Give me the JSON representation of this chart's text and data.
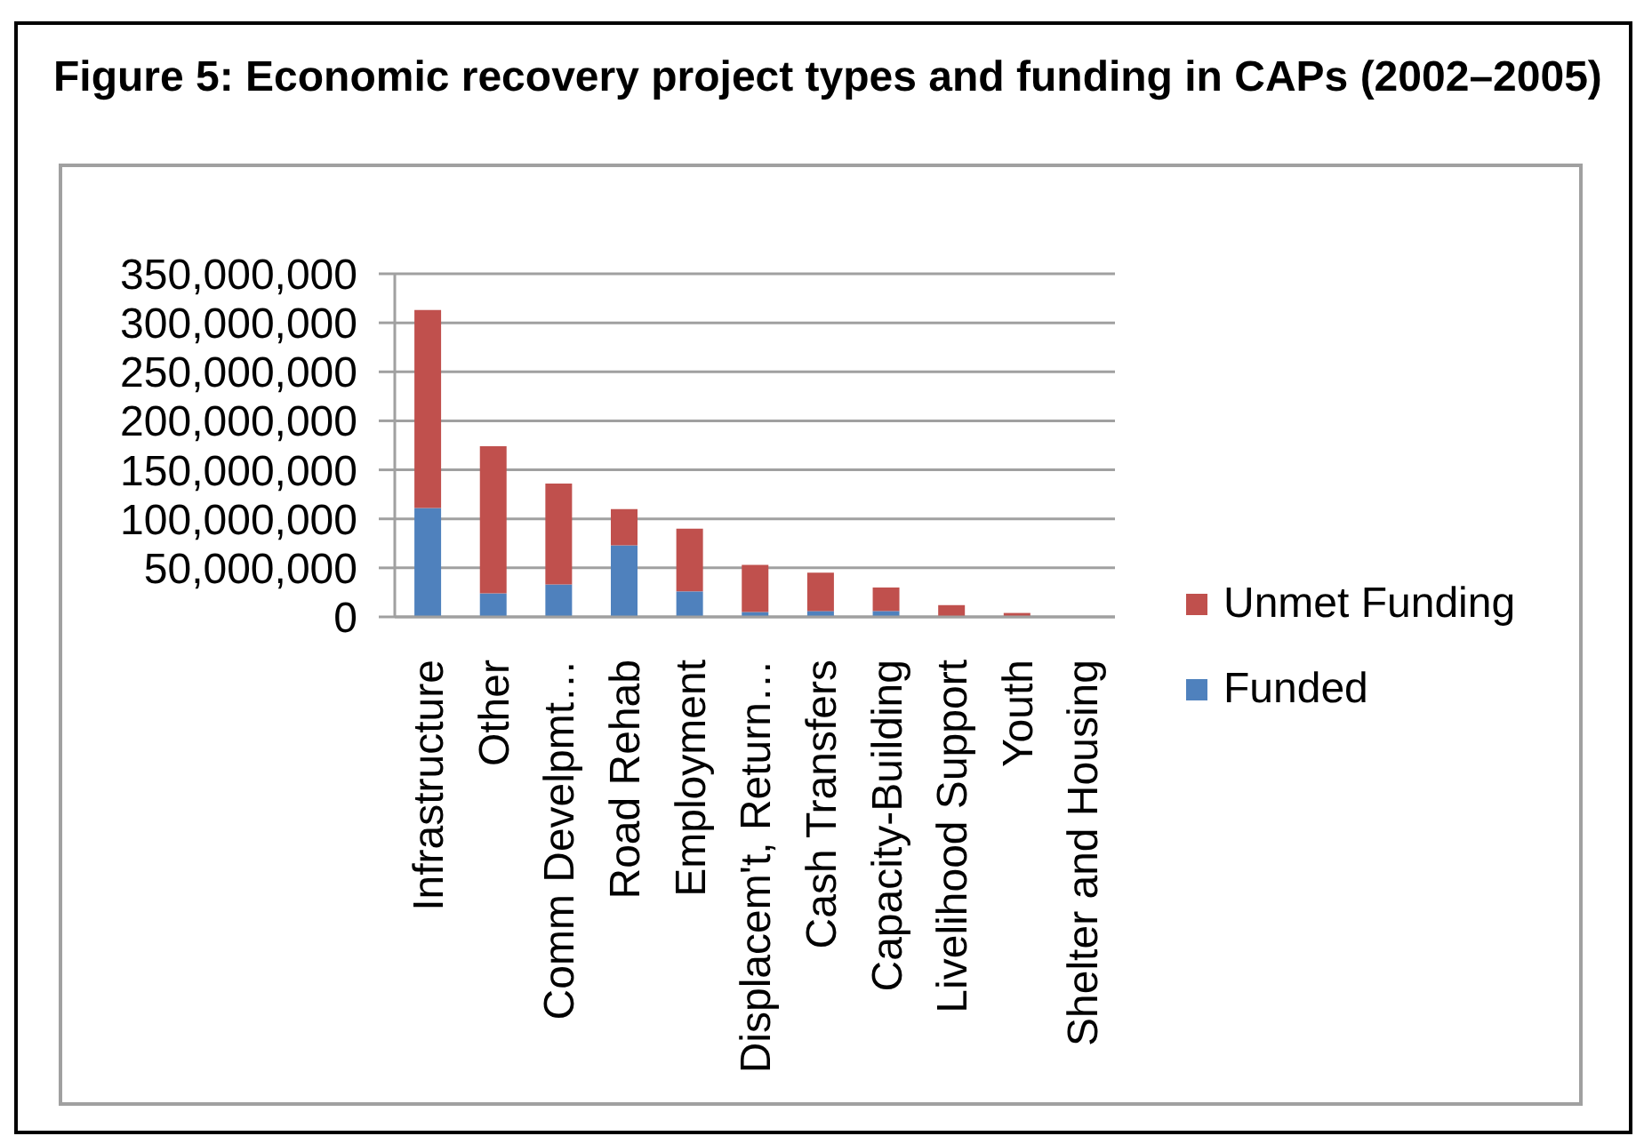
{
  "chart_data": {
    "type": "bar",
    "title": "Figure 5: Economic recovery project types and funding in CAPs (2002–2005)",
    "categories": [
      "Infrastructure",
      "Other",
      "Comm Develpmt…",
      "Road Rehab",
      "Employment",
      "Displacem't, Return…",
      "Cash Transfers",
      "Capacity-Building",
      "Livelihood Support",
      "Youth",
      "Shelter and Housing"
    ],
    "series": [
      {
        "name": "Funded",
        "color": "#4f81bd",
        "values": [
          111000000,
          24000000,
          33000000,
          73000000,
          26000000,
          5000000,
          6000000,
          6000000,
          0,
          0,
          0
        ]
      },
      {
        "name": "Unmet Funding",
        "color": "#c0504d",
        "values": [
          202000000,
          150000000,
          103000000,
          37000000,
          64000000,
          48000000,
          39000000,
          24000000,
          12000000,
          4000000,
          0
        ]
      }
    ],
    "stacked": true,
    "ylim": [
      0,
      350000000
    ],
    "yticks": [
      {
        "value": 0,
        "label": "0"
      },
      {
        "value": 50000000,
        "label": "50,000,000"
      },
      {
        "value": 100000000,
        "label": "100,000,000"
      },
      {
        "value": 150000000,
        "label": "150,000,000"
      },
      {
        "value": 200000000,
        "label": "200,000,000"
      },
      {
        "value": 250000000,
        "label": "250,000,000"
      },
      {
        "value": 300000000,
        "label": "300,000,000"
      },
      {
        "value": 350000000,
        "label": "350,000,000"
      }
    ],
    "grid": "y",
    "legend": "right"
  }
}
